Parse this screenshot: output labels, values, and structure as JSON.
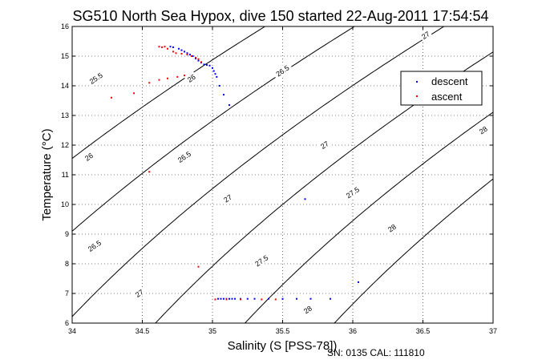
{
  "chart_data": {
    "type": "scatter",
    "title": "SG510 North Sea Hypox, dive 150 started 22-Aug-2011 17:54:54",
    "xlabel": "Salinity (S [PSS-78])",
    "ylabel": "Temperature (°C)",
    "xlim": [
      34,
      37
    ],
    "ylim": [
      6,
      16
    ],
    "xticks": [
      34,
      34.5,
      35,
      35.5,
      36,
      36.5,
      37
    ],
    "xtick_labels": [
      "34",
      "34.5",
      "35",
      "35.5",
      "36",
      "36.5",
      "37"
    ],
    "yticks": [
      6,
      7,
      8,
      9,
      10,
      11,
      12,
      13,
      14,
      15,
      16
    ],
    "ytick_labels": [
      "6",
      "7",
      "8",
      "9",
      "10",
      "11",
      "12",
      "13",
      "14",
      "15",
      "16"
    ],
    "grid": true,
    "legend_position": "top-right",
    "colors": {
      "descent": "#0000ff",
      "ascent": "#ff0000",
      "contour": "#000000"
    },
    "series": [
      {
        "name": "descent",
        "color": "#0000ff",
        "points": [
          [
            34.7,
            15.32
          ],
          [
            34.72,
            15.3
          ],
          [
            34.76,
            15.25
          ],
          [
            34.78,
            15.2
          ],
          [
            34.8,
            15.15
          ],
          [
            34.82,
            15.1
          ],
          [
            34.84,
            15.05
          ],
          [
            34.86,
            15.0
          ],
          [
            34.88,
            14.92
          ],
          [
            34.9,
            14.85
          ],
          [
            34.92,
            14.78
          ],
          [
            34.94,
            14.72
          ],
          [
            34.96,
            14.7
          ],
          [
            34.98,
            14.68
          ],
          [
            35.0,
            14.6
          ],
          [
            35.01,
            14.5
          ],
          [
            35.02,
            14.4
          ],
          [
            35.03,
            14.3
          ],
          [
            35.05,
            14.0
          ],
          [
            35.08,
            13.7
          ],
          [
            35.12,
            13.35
          ],
          [
            35.66,
            10.18
          ],
          [
            36.04,
            7.38
          ],
          [
            35.04,
            6.82
          ],
          [
            35.06,
            6.82
          ],
          [
            35.08,
            6.82
          ],
          [
            35.1,
            6.82
          ],
          [
            35.12,
            6.82
          ],
          [
            35.14,
            6.82
          ],
          [
            35.16,
            6.82
          ],
          [
            35.2,
            6.82
          ],
          [
            35.25,
            6.82
          ],
          [
            35.3,
            6.82
          ],
          [
            35.4,
            6.82
          ],
          [
            35.5,
            6.82
          ],
          [
            35.6,
            6.82
          ],
          [
            35.7,
            6.82
          ],
          [
            35.84,
            6.82
          ]
        ]
      },
      {
        "name": "ascent",
        "color": "#ff0000",
        "points": [
          [
            34.62,
            15.32
          ],
          [
            34.64,
            15.3
          ],
          [
            34.66,
            15.32
          ],
          [
            34.68,
            15.25
          ],
          [
            34.72,
            15.15
          ],
          [
            34.74,
            15.1
          ],
          [
            34.78,
            15.08
          ],
          [
            34.82,
            15.05
          ],
          [
            34.85,
            15.0
          ],
          [
            34.88,
            14.95
          ],
          [
            34.9,
            14.9
          ],
          [
            34.92,
            14.8
          ],
          [
            34.8,
            14.35
          ],
          [
            34.75,
            14.3
          ],
          [
            34.68,
            14.25
          ],
          [
            34.62,
            14.2
          ],
          [
            34.55,
            14.1
          ],
          [
            34.44,
            13.75
          ],
          [
            34.28,
            13.6
          ],
          [
            34.55,
            11.1
          ],
          [
            34.9,
            7.9
          ],
          [
            35.02,
            6.8
          ],
          [
            35.1,
            6.8
          ],
          [
            35.2,
            6.8
          ],
          [
            35.35,
            6.8
          ],
          [
            35.45,
            6.8
          ]
        ]
      }
    ],
    "contour_levels": [
      25.5,
      26,
      26.5,
      27,
      27.5,
      28
    ],
    "contour_labels": [
      {
        "text": "25.5",
        "s": 34.17,
        "t": 14.25
      },
      {
        "text": "26",
        "s": 34.85,
        "t": 14.25
      },
      {
        "text": "26.5",
        "s": 35.5,
        "t": 14.5
      },
      {
        "text": "27",
        "s": 36.52,
        "t": 15.7
      },
      {
        "text": "26",
        "s": 34.12,
        "t": 11.6
      },
      {
        "text": "26.5",
        "s": 34.8,
        "t": 11.6
      },
      {
        "text": "27",
        "s": 35.8,
        "t": 12.0
      },
      {
        "text": "28",
        "s": 36.93,
        "t": 12.5
      },
      {
        "text": "27",
        "s": 35.11,
        "t": 10.2
      },
      {
        "text": "27.5",
        "s": 36.0,
        "t": 10.4
      },
      {
        "text": "28",
        "s": 36.28,
        "t": 9.2
      },
      {
        "text": "26.5",
        "s": 34.16,
        "t": 8.6
      },
      {
        "text": "27.5",
        "s": 35.35,
        "t": 8.1
      },
      {
        "text": "27",
        "s": 34.48,
        "t": 7.0
      },
      {
        "text": "28",
        "s": 35.68,
        "t": 6.45
      }
    ]
  },
  "legend": {
    "descent": "descent",
    "ascent": "ascent"
  },
  "footer": {
    "text": "SN: 0135  CAL: 111810"
  }
}
